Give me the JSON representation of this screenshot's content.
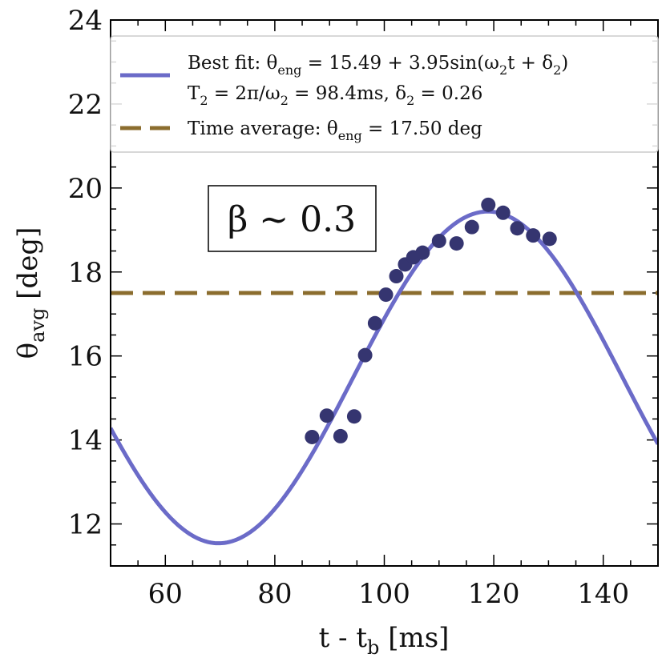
{
  "chart_data": {
    "type": "scatter",
    "xlabel": {
      "main": "t - t",
      "sub": "b",
      "unit": " [ms]"
    },
    "ylabel": {
      "main": "θ",
      "sub": "avg",
      "unit": " [deg]"
    },
    "xlim": [
      50,
      150
    ],
    "ylim": [
      11,
      24
    ],
    "x_ticks": [
      60,
      80,
      100,
      120,
      140
    ],
    "y_ticks": [
      12,
      14,
      16,
      18,
      20,
      22,
      24
    ],
    "x_minor_step": 5,
    "y_minor_step": 0.5,
    "grid": false,
    "legend_position": "top-right",
    "annotation": "β ~ 0.3",
    "series": [
      {
        "name": "data",
        "kind": "scatter",
        "color": "#353570",
        "x": [
          86.8,
          89.5,
          92.0,
          94.5,
          96.5,
          98.3,
          100.3,
          102.2,
          103.8,
          105.3,
          107.0,
          110.0,
          113.2,
          116.0,
          119.0,
          121.7,
          124.3,
          127.2,
          130.2
        ],
        "y": [
          14.07,
          14.58,
          14.09,
          14.56,
          16.02,
          16.78,
          17.46,
          17.9,
          18.18,
          18.35,
          18.46,
          18.74,
          18.68,
          19.07,
          19.6,
          19.41,
          19.04,
          18.87,
          18.79
        ]
      },
      {
        "name": "Best fit",
        "kind": "fit-line",
        "color": "#6b6bc8",
        "offset": 15.49,
        "amplitude": 3.95,
        "period_ms": 98.4,
        "phase": 0.26
      },
      {
        "name": "Time average",
        "kind": "hline",
        "color": "#8b6d2e",
        "value": 17.5
      }
    ],
    "legend": [
      {
        "series": "Best fit",
        "line1": {
          "prefix": "Best fit: θ",
          "sub1": "eng",
          "mid": " = 15.49 + 3.95sin(ω",
          "sub2": "2",
          "mid2": "t + δ",
          "sub3": "2",
          "tail": ")"
        },
        "line2": {
          "p1": "T",
          "s1": "2",
          "p2": " = 2π/ω",
          "s2": "2",
          "p3": " = 98.4ms, δ",
          "s3": "2",
          "p4": " = 0.26"
        }
      },
      {
        "series": "Time average",
        "line1": {
          "prefix": "Time average: θ",
          "sub1": "eng",
          "tail": " = 17.50 deg"
        }
      }
    ]
  }
}
